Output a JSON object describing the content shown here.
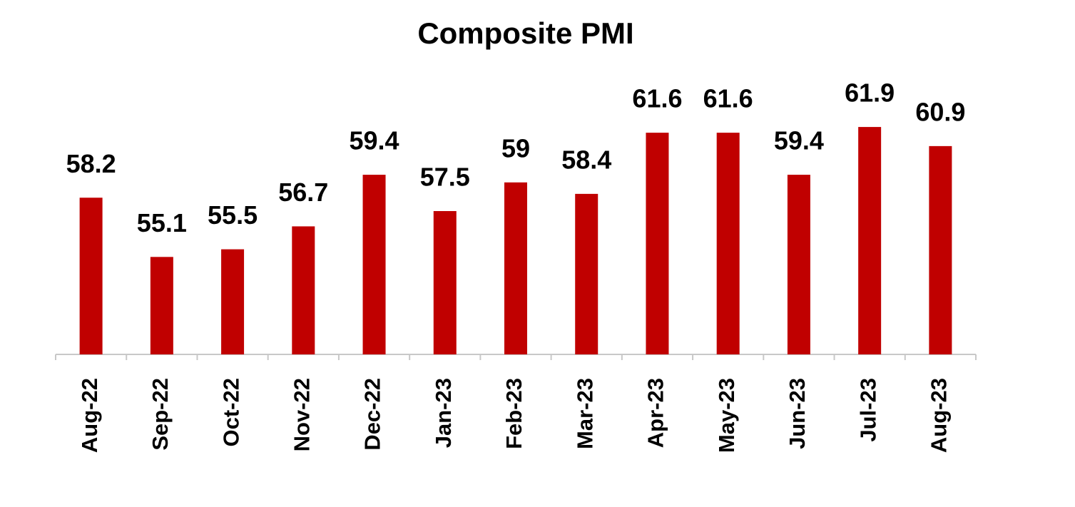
{
  "chart_data": {
    "type": "bar",
    "title": "Composite PMI",
    "categories": [
      "Aug-22",
      "Sep-22",
      "Oct-22",
      "Nov-22",
      "Dec-22",
      "Jan-23",
      "Feb-23",
      "Mar-23",
      "Apr-23",
      "May-23",
      "Jun-23",
      "Jul-23",
      "Aug-23"
    ],
    "values": [
      58.2,
      55.1,
      55.5,
      56.7,
      59.4,
      57.5,
      59,
      58.4,
      61.6,
      61.6,
      59.4,
      61.9,
      60.9
    ],
    "color": "#c00000",
    "ylim": [
      50,
      65
    ]
  }
}
